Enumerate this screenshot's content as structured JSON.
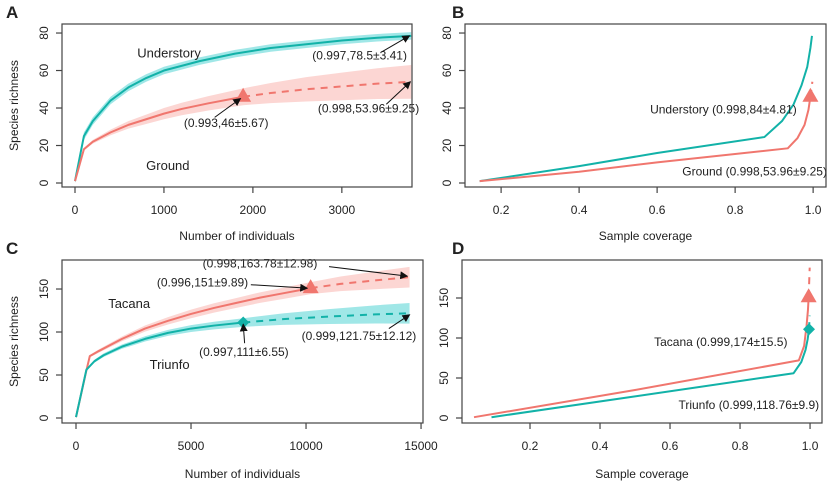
{
  "colors": {
    "teal": "#12b2a8",
    "teal_band": "#8fe3e3",
    "salmon": "#f0766e",
    "salmon_band": "#fbcfcb",
    "axis": "#444444",
    "arrow": "#111111"
  },
  "chart_data": [
    {
      "panel": "A",
      "type": "line",
      "xlabel": "Number of individuals",
      "ylabel": "Species richness",
      "xlim": [
        0,
        3800
      ],
      "ylim": [
        0,
        83
      ],
      "xticks": [
        0,
        1000,
        2000,
        3000
      ],
      "yticks": [
        0,
        20,
        40,
        60,
        80
      ],
      "series": [
        {
          "name": "Understory",
          "color_key": "teal",
          "interpolated": {
            "x": [
              0,
              100,
              200,
              400,
              600,
              800,
              1000,
              1400,
              1800,
              2200,
              2600,
              3000,
              3400,
              3780
            ],
            "y": [
              1,
              25,
              33,
              44,
              51,
              56,
              60,
              65,
              69,
              72,
              74,
              76,
              77.5,
              78.5
            ]
          },
          "extrapolated": {
            "x": [],
            "y": []
          },
          "band": {
            "lower_offset": 2,
            "upper_offset": 2
          },
          "marker": null,
          "label": "Understory",
          "label_pos": [
            700,
            67
          ]
        },
        {
          "name": "Ground",
          "color_key": "salmon",
          "interpolated": {
            "x": [
              0,
              100,
              200,
              400,
              600,
              800,
              1000,
              1200,
              1500,
              1890
            ],
            "y": [
              1,
              18,
              22,
              27,
              31,
              34,
              37,
              39.5,
              42.5,
              46
            ]
          },
          "extrapolated": {
            "x": [
              1890,
              2200,
              2600,
              3000,
              3400,
              3780
            ],
            "y": [
              46,
              48,
              50,
              51.5,
              53,
              53.96
            ]
          },
          "band_halfwidth": {
            "x": [
              0,
              400,
              1000,
              1890,
              2600,
              3780
            ],
            "w": [
              0.5,
              1.5,
              3,
              4.5,
              6.5,
              9
            ]
          },
          "marker": {
            "shape": "triangle",
            "x": 1890,
            "y": 46
          },
          "label": "Ground",
          "label_pos": [
            800,
            7
          ]
        }
      ],
      "annotations": [
        {
          "text": "(0.997,78.5±3.41)",
          "text_pos": [
            3200,
            66
          ],
          "arrow_from": [
            3450,
            70
          ],
          "arrow_to": [
            3760,
            78.5
          ]
        },
        {
          "text": "(0.993,46±5.67)",
          "text_pos": [
            1700,
            30
          ],
          "arrow_from": [
            1570,
            35
          ],
          "arrow_to": [
            1860,
            45
          ]
        },
        {
          "text": "(0.998,53.96±9.25)",
          "text_pos": [
            3300,
            37.5
          ],
          "arrow_from": [
            3500,
            42
          ],
          "arrow_to": [
            3770,
            54
          ]
        }
      ]
    },
    {
      "panel": "B",
      "type": "line",
      "xlabel": "Sample coverage",
      "ylabel": "",
      "xlim": [
        0.11,
        1.033
      ],
      "ylim": [
        0,
        83
      ],
      "xticks": [
        0.2,
        0.4,
        0.6,
        0.8,
        1.0
      ],
      "xtick_labels": [
        "0.2",
        "0.4",
        "0.6",
        "0.8",
        "1.0"
      ],
      "yticks": [
        0,
        20,
        40,
        60,
        80
      ],
      "series": [
        {
          "name": "Understory",
          "color_key": "teal",
          "interpolated": {
            "x": [
              0.145,
              0.4,
              0.6,
              0.875,
              0.92,
              0.95,
              0.97,
              0.985,
              0.993,
              0.997
            ],
            "y": [
              1,
              9,
              16,
              24.5,
              33,
              42,
              52,
              62,
              72,
              78.5
            ]
          },
          "extrapolated": {
            "x": [],
            "y": []
          },
          "marker": null
        },
        {
          "name": "Ground",
          "color_key": "salmon",
          "interpolated": {
            "x": [
              0.145,
              0.4,
              0.6,
              0.935,
              0.96,
              0.978,
              0.988,
              0.993
            ],
            "y": [
              1,
              6,
              11,
              18.5,
              24,
              31,
              39,
              46
            ]
          },
          "extrapolated": {
            "x": [
              0.993,
              0.998
            ],
            "y": [
              46,
              54
            ]
          },
          "marker": {
            "shape": "triangle",
            "x": 0.993,
            "y": 46
          }
        }
      ],
      "annotations": [
        {
          "text": "Understory (0.998,84±4.81)",
          "text_pos": [
            0.77,
            37
          ]
        },
        {
          "text": "Ground (0.998,53.96±9.25)",
          "text_pos": [
            0.85,
            4
          ]
        }
      ]
    },
    {
      "panel": "C",
      "type": "line",
      "xlabel": "Number of individuals",
      "ylabel": "Species richness",
      "xlim": [
        0,
        15050
      ],
      "ylim": [
        0,
        182
      ],
      "xticks": [
        0,
        5000,
        10000,
        15000
      ],
      "yticks": [
        0,
        50,
        100,
        150
      ],
      "series": [
        {
          "name": "Tacana",
          "color_key": "salmon",
          "interpolated": {
            "x": [
              0,
              450,
              600,
              1000,
              2000,
              3000,
              4000,
              5000,
              6000,
              7000,
              8000,
              9000,
              10200
            ],
            "y": [
              1,
              55,
              72,
              78,
              92,
              104,
              113,
              121,
              128,
              134,
              140,
              145,
              151
            ]
          },
          "extrapolated": {
            "x": [
              10200,
              11500,
              13000,
              14500
            ],
            "y": [
              151,
              156,
              160,
              163.78
            ]
          },
          "band_halfwidth": {
            "x": [
              0,
              1000,
              5000,
              10200,
              14500
            ],
            "w": [
              0.5,
              2,
              5,
              7,
              12
            ]
          },
          "marker": {
            "shape": "triangle",
            "x": 10200,
            "y": 151
          },
          "label": "Tacana",
          "label_pos": [
            1400,
            128
          ]
        },
        {
          "name": "Triunfo",
          "color_key": "teal",
          "interpolated": {
            "x": [
              0,
              450,
              800,
              1200,
              2000,
              3000,
              4000,
              5000,
              6000,
              7270
            ],
            "y": [
              1,
              56,
              66,
              73,
              83,
              92,
              99,
              104,
              107.5,
              111
            ]
          },
          "extrapolated": {
            "x": [
              7270,
              9000,
              11000,
              13000,
              14500
            ],
            "y": [
              111,
              115,
              118,
              120.5,
              121.75
            ]
          },
          "band_halfwidth": {
            "x": [
              0,
              1000,
              5000,
              7270,
              14500
            ],
            "w": [
              0.5,
              2,
              4,
              5,
              12
            ]
          },
          "marker": {
            "shape": "diamond",
            "x": 7270,
            "y": 111
          },
          "label": "Triunfo",
          "label_pos": [
            3200,
            57
          ]
        }
      ],
      "annotations": [
        {
          "text": "(0.996,151±9.89)",
          "text_pos": [
            5500,
            153
          ],
          "arrow_from": [
            7600,
            155
          ],
          "arrow_to": [
            10050,
            151
          ]
        },
        {
          "text": "(0.998,163.78±12.98)",
          "text_pos": [
            8000,
            175
          ],
          "arrow_from": [
            11000,
            176
          ],
          "arrow_to": [
            14400,
            165
          ]
        },
        {
          "text": "(0.997,111±6.55)",
          "text_pos": [
            7300,
            72
          ],
          "arrow_from": [
            7330,
            87
          ],
          "arrow_to": [
            7270,
            109
          ]
        },
        {
          "text": "(0.999,121.75±12.12)",
          "text_pos": [
            12300,
            91
          ],
          "arrow_from": [
            13600,
            104
          ],
          "arrow_to": [
            14500,
            120
          ]
        }
      ]
    },
    {
      "panel": "D",
      "type": "line",
      "xlabel": "Sample coverage",
      "ylabel": "",
      "xlim": [
        0,
        1.037
      ],
      "ylim": [
        0,
        195
      ],
      "xticks": [
        0.2,
        0.4,
        0.6,
        0.8,
        1.0
      ],
      "xtick_labels": [
        "0.2",
        "0.4",
        "0.6",
        "0.8",
        "1.0"
      ],
      "yticks": [
        0,
        50,
        100,
        150
      ],
      "series": [
        {
          "name": "Tacana",
          "color_key": "salmon",
          "interpolated": {
            "x": [
              0.04,
              0.5,
              0.968,
              0.983,
              0.99,
              0.994,
              0.996
            ],
            "y": [
              1,
              35,
              72,
              90,
              115,
              135,
              151
            ]
          },
          "extrapolated": {
            "x": [
              0.996,
              0.999
            ],
            "y": [
              151,
              188
            ]
          },
          "marker": {
            "shape": "triangle",
            "x": 0.996,
            "y": 151
          }
        },
        {
          "name": "Triunfo",
          "color_key": "teal",
          "interpolated": {
            "x": [
              0.09,
              0.5,
              0.953,
              0.975,
              0.987,
              0.993,
              0.997
            ],
            "y": [
              1,
              27,
              56,
              70,
              85,
              98,
              111
            ]
          },
          "extrapolated": {
            "x": [
              0.997,
              0.999
            ],
            "y": [
              111,
              128
            ]
          },
          "marker": {
            "shape": "diamond",
            "x": 0.997,
            "y": 111
          }
        }
      ],
      "annotations": [
        {
          "text": "Tacana (0.999,174±15.5)",
          "text_pos": [
            0.745,
            90
          ]
        },
        {
          "text": "Triunfo (0.999,118.76±9.9)",
          "text_pos": [
            0.825,
            11
          ]
        }
      ]
    }
  ]
}
